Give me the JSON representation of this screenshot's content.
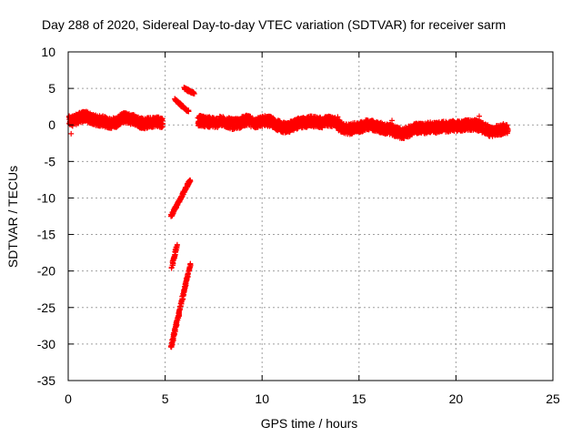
{
  "chart_data": {
    "type": "scatter",
    "title": "Day 288 of 2020, Sidereal Day-to-day VTEC variation (SDTVAR) for receiver sarm",
    "xlabel": "GPS time / hours",
    "ylabel": "SDTVAR / TECUs",
    "xlim": [
      0,
      25
    ],
    "ylim": [
      -35,
      10
    ],
    "xticks": [
      0,
      5,
      10,
      15,
      20,
      25
    ],
    "yticks": [
      -35,
      -30,
      -25,
      -20,
      -15,
      -10,
      -5,
      0,
      5,
      10
    ],
    "grid": true,
    "marker": "+",
    "series_color": "#ff0000",
    "series": [
      {
        "baseline": [
          [
            0.05,
            0.5
          ],
          [
            0.3,
            0.6
          ],
          [
            0.6,
            1.0
          ],
          [
            0.9,
            1.2
          ],
          [
            1.2,
            0.8
          ],
          [
            1.5,
            0.6
          ],
          [
            1.8,
            0.5
          ],
          [
            2.1,
            0.2
          ],
          [
            2.5,
            0.4
          ],
          [
            2.8,
            1.0
          ],
          [
            3.1,
            0.9
          ],
          [
            3.4,
            0.7
          ],
          [
            3.7,
            0.3
          ],
          [
            4.0,
            0.2
          ],
          [
            4.3,
            0.4
          ],
          [
            4.6,
            0.5
          ],
          [
            4.9,
            0.3
          ],
          [
            6.7,
            0.6
          ],
          [
            7.0,
            0.5
          ],
          [
            7.3,
            0.4
          ],
          [
            7.6,
            0.3
          ],
          [
            7.9,
            0.5
          ],
          [
            8.2,
            0.3
          ],
          [
            8.5,
            0.1
          ],
          [
            8.8,
            0.2
          ],
          [
            9.1,
            0.6
          ],
          [
            9.4,
            0.5
          ],
          [
            9.7,
            0.2
          ],
          [
            10.1,
            0.6
          ],
          [
            10.4,
            0.5
          ],
          [
            10.7,
            0.1
          ],
          [
            11.0,
            -0.3
          ],
          [
            11.3,
            -0.4
          ],
          [
            11.6,
            -0.1
          ],
          [
            11.9,
            0.3
          ],
          [
            12.2,
            0.3
          ],
          [
            12.5,
            0.5
          ],
          [
            12.8,
            0.4
          ],
          [
            13.1,
            0.3
          ],
          [
            13.4,
            0.5
          ],
          [
            13.7,
            0.5
          ],
          [
            14.2,
            -0.5
          ],
          [
            14.5,
            -0.6
          ],
          [
            14.8,
            -0.4
          ],
          [
            15.1,
            -0.3
          ],
          [
            15.4,
            0.1
          ],
          [
            15.7,
            -0.1
          ],
          [
            16.0,
            -0.3
          ],
          [
            16.3,
            -0.5
          ],
          [
            16.6,
            -0.6
          ],
          [
            16.9,
            -0.9
          ],
          [
            17.2,
            -1.2
          ],
          [
            17.5,
            -1.0
          ],
          [
            17.8,
            -0.6
          ],
          [
            18.1,
            -0.4
          ],
          [
            18.4,
            -0.5
          ],
          [
            18.7,
            -0.3
          ],
          [
            19.0,
            -0.4
          ],
          [
            19.3,
            -0.2
          ],
          [
            19.6,
            -0.3
          ],
          [
            19.9,
            -0.1
          ],
          [
            20.2,
            -0.2
          ],
          [
            20.5,
            0.0
          ],
          [
            21.0,
            0.0
          ],
          [
            21.5,
            -0.5
          ],
          [
            21.8,
            -1.0
          ],
          [
            22.1,
            -0.8
          ],
          [
            22.4,
            -0.6
          ],
          [
            22.7,
            -0.4
          ]
        ],
        "spread": 0.9,
        "segments": [
          [
            [
              5.3,
              -30.5
            ],
            [
              6.3,
              -19.0
            ]
          ],
          [
            [
              5.3,
              -12.5
            ],
            [
              6.3,
              -7.5
            ]
          ],
          [
            [
              5.35,
              -19.5
            ],
            [
              5.6,
              -16.5
            ]
          ],
          [
            [
              5.5,
              3.5
            ],
            [
              6.2,
              1.8
            ]
          ],
          [
            [
              6.0,
              5.0
            ],
            [
              6.5,
              4.3
            ]
          ]
        ],
        "outliers": [
          [
            16.7,
            0.6
          ],
          [
            20.3,
            0.5
          ],
          [
            21.2,
            1.2
          ],
          [
            9.2,
            1.3
          ],
          [
            0.15,
            -1.2
          ],
          [
            13.9,
            1.1
          ]
        ]
      }
    ]
  }
}
